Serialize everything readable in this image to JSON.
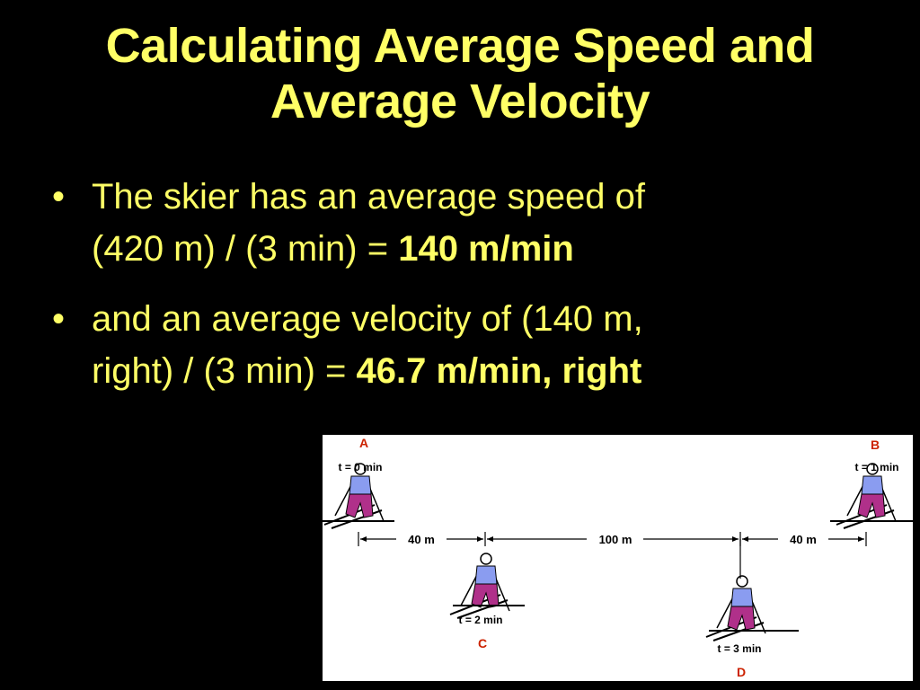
{
  "slide": {
    "title_line1": "Calculating Average Speed and",
    "title_line2": "Average Velocity",
    "bullet_glyph": "•",
    "bullet1": {
      "line1": "The skier has an average speed of",
      "line2_prefix": "(420 m) / (3 min) = ",
      "line2_bold": "140 m/min"
    },
    "bullet2": {
      "line1": "and an average velocity of (140 m,",
      "line2_prefix": "right) / (3 min) = ",
      "line2_bold": "46.7 m/min, right"
    }
  },
  "diagram": {
    "points": [
      {
        "letter": "A",
        "time": "t = 0 min"
      },
      {
        "letter": "B",
        "time": "t = 1 min"
      },
      {
        "letter": "C",
        "time": "t = 2 min"
      },
      {
        "letter": "D",
        "time": "t = 3 min"
      }
    ],
    "distances": [
      "40 m",
      "100 m",
      "40 m"
    ],
    "colors": {
      "letter": "#cc2200",
      "skier_shirt": "#8a9cf0",
      "skier_pants": "#b0308a"
    }
  }
}
